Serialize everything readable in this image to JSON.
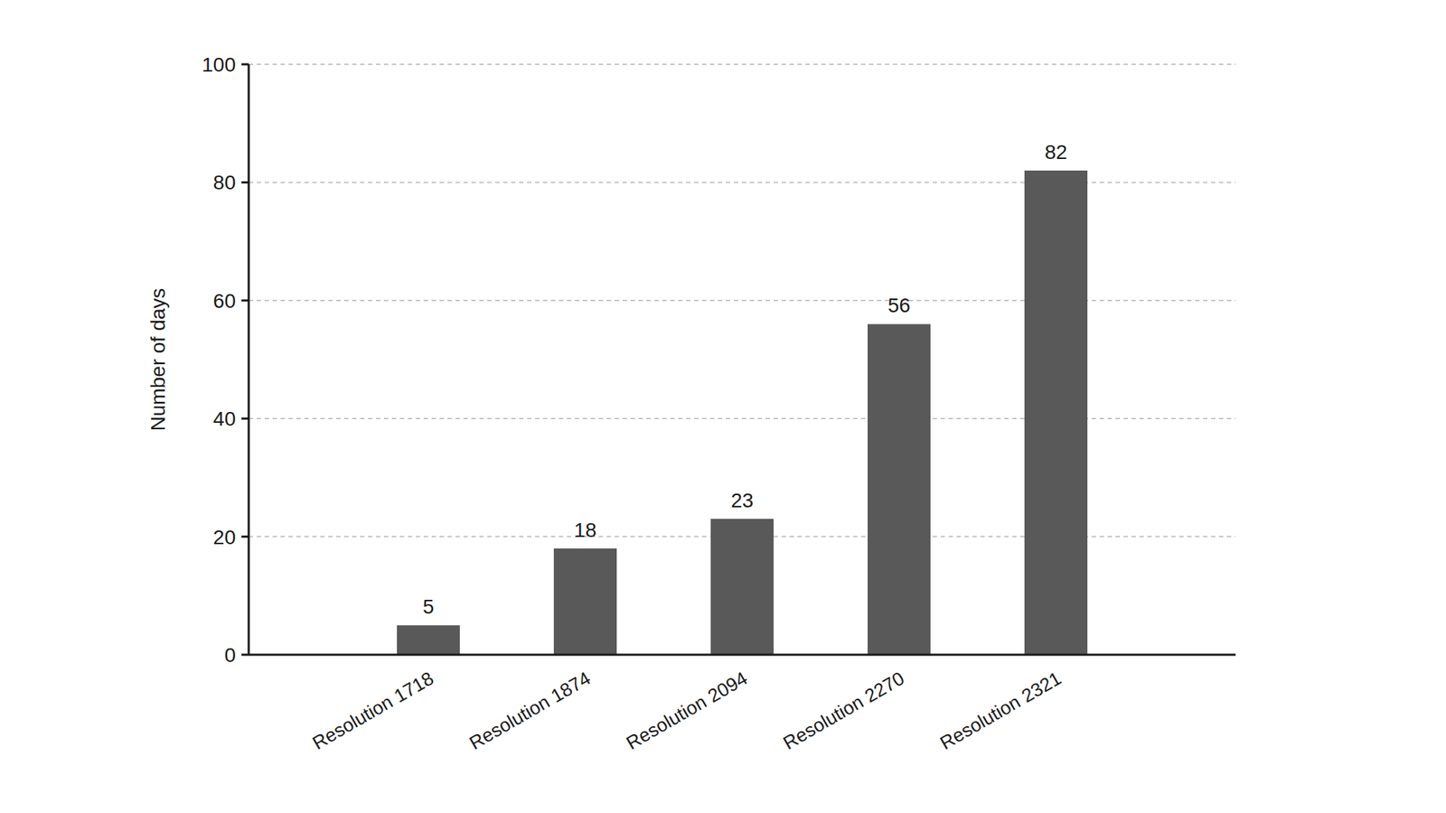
{
  "chart_data": {
    "type": "bar",
    "y_label": "Number of days",
    "categories": [
      "Resolution 1718",
      "Resolution 1874",
      "Resolution 2094",
      "Resolution 2270",
      "Resolution 2321"
    ],
    "values": [
      5,
      18,
      23,
      56,
      82
    ],
    "color": "#595959",
    "ylim": [
      0,
      100
    ],
    "yticks": [
      0,
      20,
      40,
      60,
      80,
      100
    ],
    "grid": true,
    "data_labels": true
  }
}
